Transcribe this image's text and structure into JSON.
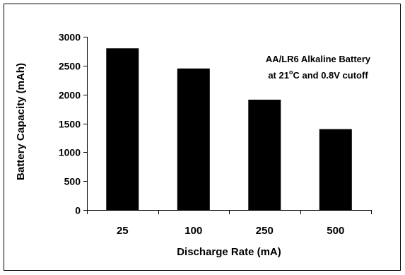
{
  "chart_data": {
    "type": "bar",
    "categories": [
      "25",
      "100",
      "250",
      "500"
    ],
    "values": [
      2800,
      2450,
      1910,
      1400
    ],
    "xlabel": "Discharge Rate (mA)",
    "ylabel": "Battery Capacity (mAh)",
    "ylim": [
      0,
      3000
    ],
    "yticks": [
      0,
      500,
      1000,
      1500,
      2000,
      2500,
      3000
    ],
    "grid": false,
    "legend": "none",
    "annotation": {
      "line1": "AA/LR6 Alkaline Battery",
      "line2_prefix": "at 21",
      "line2_sup": "o",
      "line2_suffix": "C and 0.8V cutoff"
    },
    "colors": {
      "bar": "#000000",
      "background": "#ffffff"
    }
  }
}
